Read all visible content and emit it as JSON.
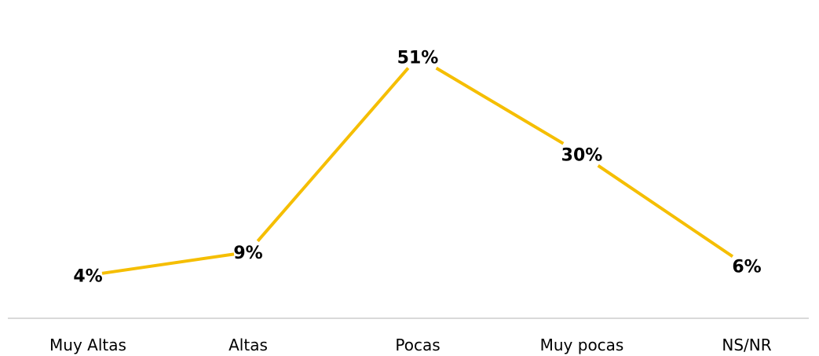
{
  "chart_data": {
    "type": "line",
    "categories": [
      "Muy Altas",
      "Altas",
      "Pocas",
      "Muy pocas",
      "NS/NR"
    ],
    "series": [
      {
        "values": [
          4,
          9,
          51,
          30,
          6
        ],
        "labels": [
          "4%",
          "9%",
          "51%",
          "30%",
          "6%"
        ],
        "color": "#F5BE00"
      }
    ],
    "title": "",
    "xlabel": "",
    "ylabel": "",
    "ylim": [
      0,
      55
    ],
    "grid": false,
    "legend": "none",
    "axis_color": "#D9D9D9"
  }
}
